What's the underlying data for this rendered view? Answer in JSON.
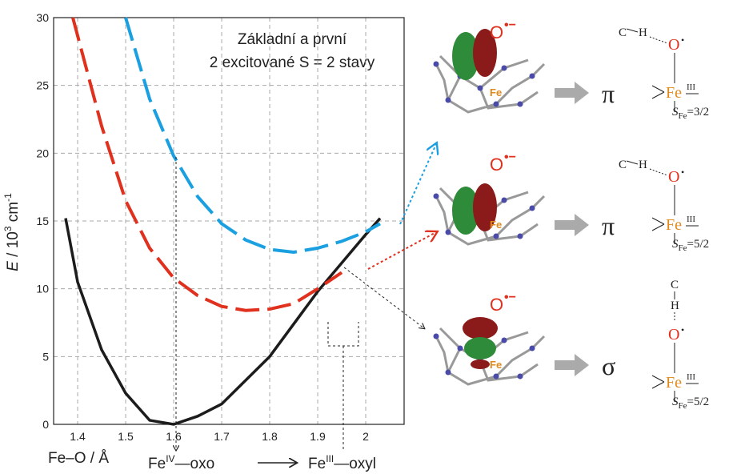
{
  "chart_data": {
    "type": "line",
    "title_lines": [
      "Základní a první",
      "2 excitované S = 2 stavy"
    ],
    "ylabel": [
      "E",
      " / 10",
      "3",
      "  cm",
      "-1"
    ],
    "xlabel": "Fe–O / Å",
    "fe_oxo": [
      "Fe",
      "IV",
      "—oxo"
    ],
    "fe_oxyl": [
      "Fe",
      "III",
      "—oxyl"
    ],
    "xlim": [
      1.35,
      2.08
    ],
    "ylim": [
      0,
      30
    ],
    "xticks": [
      1.4,
      1.5,
      1.6,
      1.7,
      1.8,
      1.9,
      2.0
    ],
    "yticks": [
      0,
      5,
      10,
      15,
      20,
      25,
      30
    ],
    "grid": true,
    "series": [
      {
        "color": "#1c1c1c",
        "style": "solid",
        "x": [
          1.375,
          1.4,
          1.45,
          1.5,
          1.55,
          1.6,
          1.65,
          1.7,
          1.8,
          1.9,
          2.0,
          2.03
        ],
        "values": [
          15.2,
          10.5,
          5.5,
          2.3,
          0.3,
          0,
          0.6,
          1.5,
          5,
          9.8,
          14,
          15.2
        ]
      },
      {
        "color": "#e0301e",
        "style": "dashed",
        "x": [
          1.39,
          1.45,
          1.5,
          1.55,
          1.6,
          1.65,
          1.7,
          1.75,
          1.8,
          1.85,
          1.9,
          1.95
        ],
        "values": [
          30,
          22,
          16.5,
          13,
          10.8,
          9.5,
          8.7,
          8.4,
          8.5,
          8.9,
          10,
          11.2
        ]
      },
      {
        "color": "#1aa0e0",
        "style": "dashed",
        "x": [
          1.5,
          1.55,
          1.6,
          1.65,
          1.7,
          1.75,
          1.8,
          1.85,
          1.9,
          1.95,
          2.0,
          2.03
        ],
        "values": [
          30,
          24,
          19.8,
          16.8,
          14.8,
          13.6,
          12.9,
          12.7,
          13,
          13.5,
          14.2,
          14.8
        ]
      }
    ]
  },
  "panels": [
    {
      "mol_o": "O",
      "mol_rad": "•−",
      "mol_fe": "Fe",
      "orbital": "π",
      "c": "C",
      "h": "H",
      "o": "O",
      "rad": "•",
      "fe": "Fe",
      "ox": "III",
      "s": "S",
      "s_sub": "Fe",
      "spin": "=3/2"
    },
    {
      "mol_o": "O",
      "mol_rad": "•−",
      "mol_fe": "Fe",
      "orbital": "π",
      "c": "C",
      "h": "H",
      "o": "O",
      "rad": "•",
      "fe": "Fe",
      "ox": "III",
      "s": "S",
      "s_sub": "Fe",
      "spin": "=5/2"
    },
    {
      "mol_o": "O",
      "mol_rad": "•−",
      "mol_fe": "Fe",
      "orbital": "σ",
      "c": "C",
      "h": "H",
      "o": "O",
      "rad": "•",
      "fe": "Fe",
      "ox": "III",
      "s": "S",
      "s_sub": "Fe",
      "spin": "=5/2"
    }
  ]
}
